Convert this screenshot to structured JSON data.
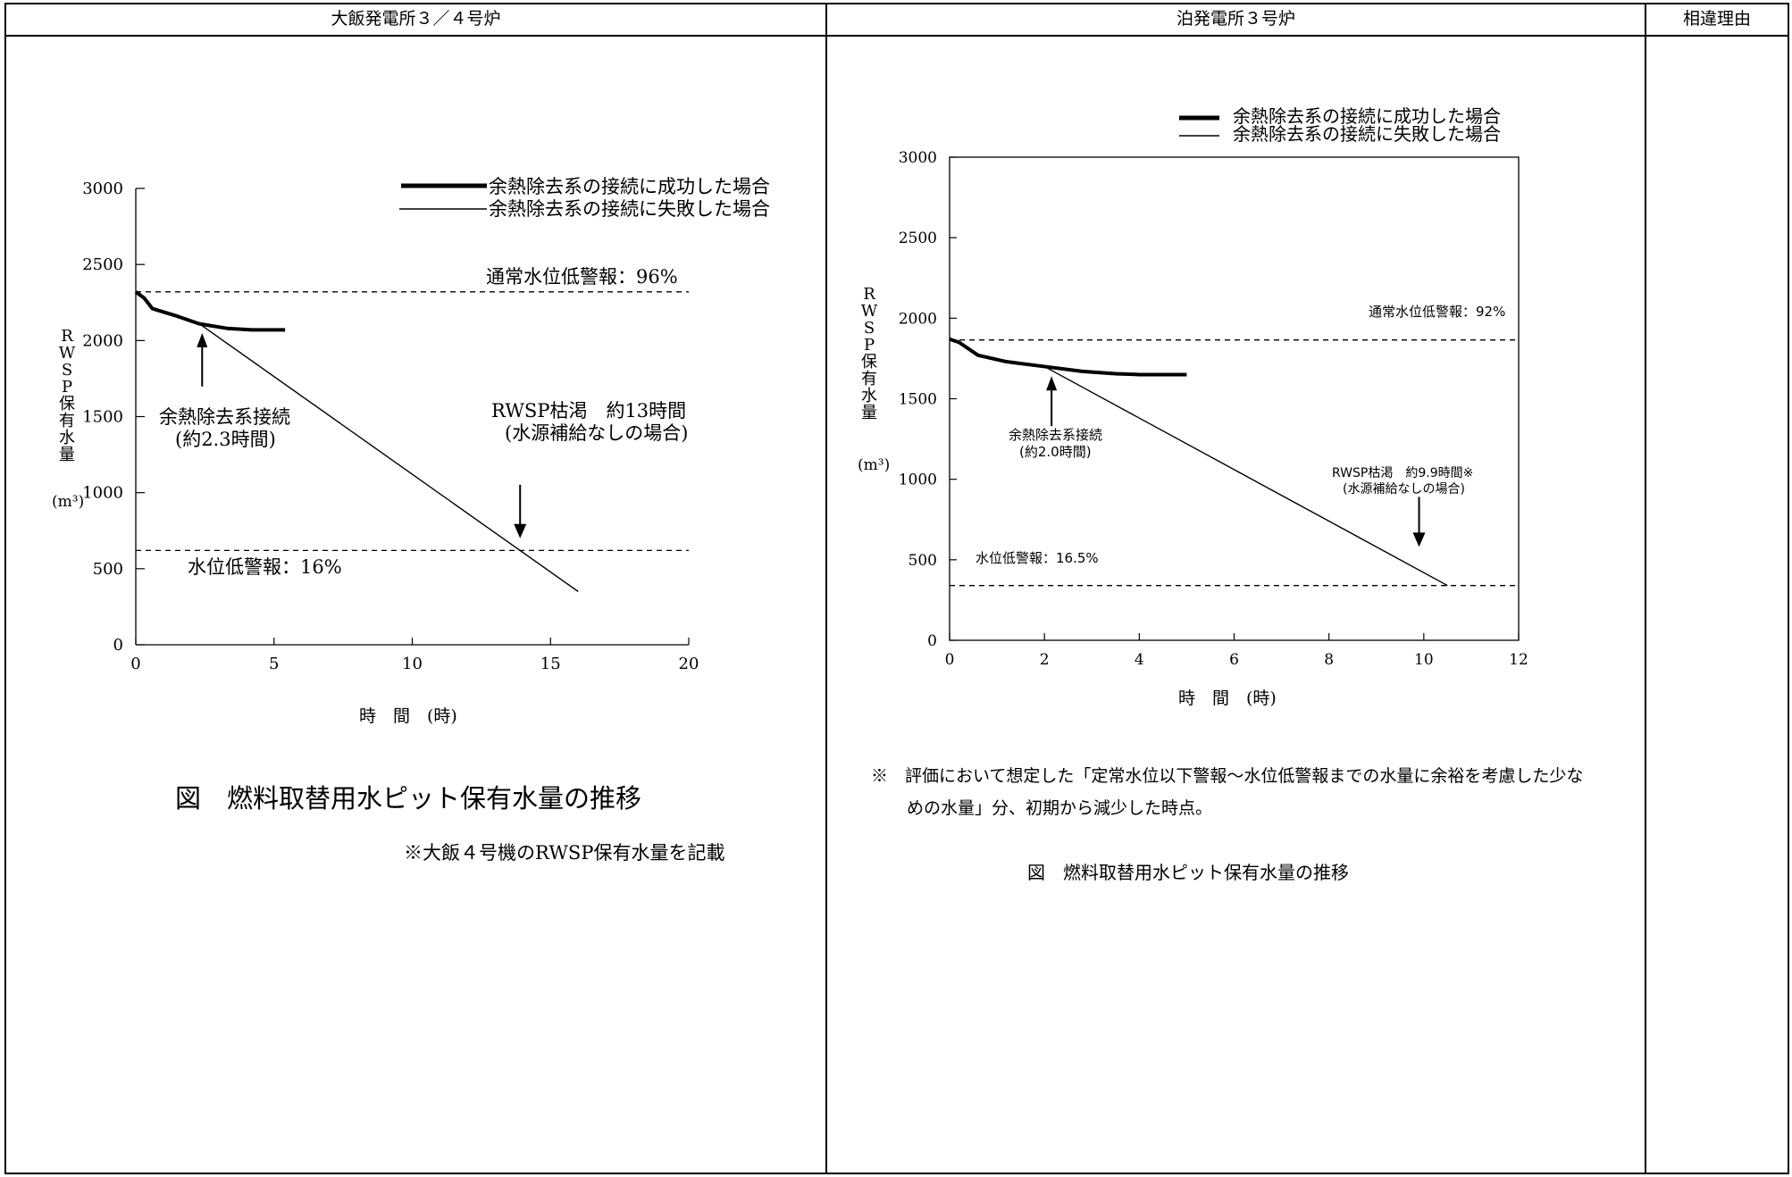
{
  "header": {
    "col_left": "大飯発電所３／４号炉",
    "col_mid": "泊発電所３号炉",
    "col_right": "相違理由"
  },
  "left": {
    "ylabel_vertical": "RWSP保有水量",
    "ylabel_unit": "(m³)",
    "xlabel": "時　間　(時)",
    "legend": [
      "余熱除去系の接続に成功した場合",
      "余熱除去系の接続に失敗した場合"
    ],
    "ann_high": "通常水位低警報：96%",
    "ann_low": "水位低警報：16%",
    "ann_connect": [
      "余熱除去系接続",
      "(約2.3時間)"
    ],
    "ann_dry": [
      "RWSP枯渇　約13時間",
      "(水源補給なしの場合)"
    ],
    "fig_title": "図　燃料取替用水ピット保有水量の推移",
    "note": "※大飯４号機のRWSP保有水量を記載"
  },
  "right": {
    "ylabel_vertical": "RWSP保有水量",
    "ylabel_unit": "(m³)",
    "xlabel": "時　間　(時)",
    "legend": [
      "余熱除去系の接続に成功した場合",
      "余熱除去系の接続に失敗した場合"
    ],
    "ann_high": "通常水位低警報：92%",
    "ann_low": "水位低警報：16.5%",
    "ann_connect": [
      "余熱除去系接続",
      "(約2.0時間)"
    ],
    "ann_dry": [
      "RWSP枯渇　約9.9時間※",
      "(水源補給なしの場合)"
    ],
    "footnote": [
      "※　評価において想定した「定常水位以下警報～水位低警報までの水量に余裕を考慮した少な",
      "めの水量」分、初期から減少した時点。"
    ],
    "fig_title": "図　燃料取替用水ピット保有水量の推移"
  },
  "chart_data": [
    {
      "type": "line",
      "xlim": [
        0,
        20
      ],
      "ylim": [
        0,
        3000
      ],
      "xticks": [
        0,
        5,
        10,
        15,
        20
      ],
      "yticks": [
        0,
        500,
        1000,
        1500,
        2000,
        2500,
        3000
      ],
      "series": [
        {
          "name": "余熱除去系の接続に成功した場合",
          "style": "thick",
          "x": [
            0,
            0.3,
            0.6,
            1.5,
            2.3,
            3.3,
            4.2,
            5.4
          ],
          "y": [
            2320,
            2280,
            2210,
            2160,
            2110,
            2080,
            2070,
            2070
          ]
        },
        {
          "name": "余熱除去系の接続に失敗した場合",
          "style": "thin",
          "x": [
            2.3,
            16
          ],
          "y": [
            2110,
            350
          ]
        }
      ],
      "hlines": [
        {
          "label": "通常水位低警報：96%",
          "y": 2320
        },
        {
          "label": "水位低警報：16%",
          "y": 620
        }
      ],
      "arrows": [
        {
          "label": "余熱除去系接続",
          "x": 2.4,
          "y": 2050,
          "dir": "up"
        },
        {
          "label": "RWSP枯渇",
          "x": 13.9,
          "y": 700,
          "dir": "down"
        }
      ]
    },
    {
      "type": "line",
      "xlim": [
        0,
        12
      ],
      "ylim": [
        0,
        3000
      ],
      "xticks": [
        0,
        2,
        4,
        6,
        8,
        10,
        12
      ],
      "yticks": [
        0,
        500,
        1000,
        1500,
        2000,
        2500,
        3000
      ],
      "series": [
        {
          "name": "余熱除去系の接続に成功した場合",
          "style": "thick",
          "x": [
            0,
            0.2,
            0.6,
            1.2,
            2.0,
            2.8,
            3.5,
            4.0,
            5.0
          ],
          "y": [
            1870,
            1850,
            1770,
            1730,
            1700,
            1670,
            1655,
            1650,
            1650
          ]
        },
        {
          "name": "余熱除去系の接続に失敗した場合",
          "style": "thin",
          "x": [
            2.0,
            10.5
          ],
          "y": [
            1700,
            340
          ]
        }
      ],
      "hlines": [
        {
          "label": "通常水位低警報：92%",
          "y": 1865
        },
        {
          "label": "水位低警報：16.5%",
          "y": 340
        }
      ],
      "arrows": [
        {
          "label": "余熱除去系接続",
          "x": 2.15,
          "y": 1640,
          "dir": "up"
        },
        {
          "label": "RWSP枯渇",
          "x": 9.9,
          "y": 580,
          "dir": "down"
        }
      ]
    }
  ]
}
